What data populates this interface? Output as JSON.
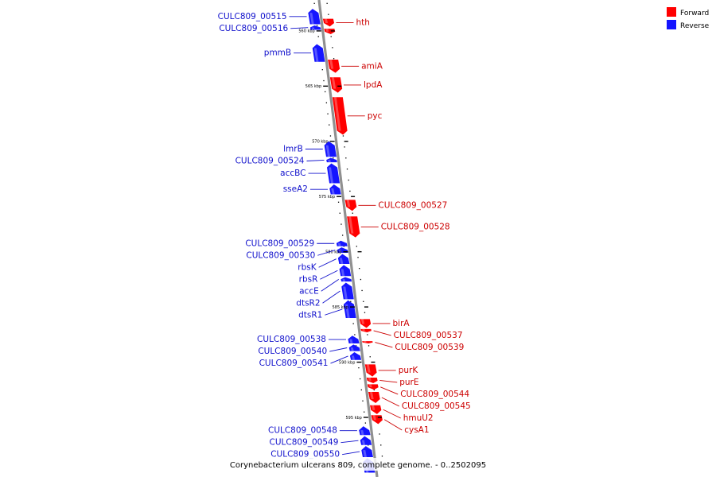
{
  "colors": {
    "forward": "#ff0000",
    "reverse": "#1515ff",
    "backbone": "#909090",
    "forward_label": "#cc0000",
    "reverse_label": "#1010cc"
  },
  "legend": {
    "forward": "Forward",
    "reverse": "Reverse"
  },
  "caption": "Corynebacterium ulcerans 809, complete genome. - 0..2502095",
  "ticks": [
    {
      "label": "560 kbp",
      "kbp": 560
    },
    {
      "label": "565 kbp",
      "kbp": 565
    },
    {
      "label": "570 kbp",
      "kbp": 570
    },
    {
      "label": "575 kbp",
      "kbp": 575
    },
    {
      "label": "580 kbp",
      "kbp": 580
    },
    {
      "label": "585 kbp",
      "kbp": 585
    },
    {
      "label": "590 kbp",
      "kbp": 590
    },
    {
      "label": "595 kbp",
      "kbp": 595
    }
  ],
  "genes": [
    {
      "name": "CULC809_00515",
      "strand": "reverse",
      "start": 558.0,
      "end": 559.4
    },
    {
      "name": "CULC809_00516",
      "strand": "reverse",
      "start": 559.5,
      "end": 559.9
    },
    {
      "name": "hth",
      "strand": "forward",
      "start": 558.9,
      "end": 559.6
    },
    {
      "name": "",
      "strand": "forward",
      "start": 559.8,
      "end": 560.3
    },
    {
      "name": "pmmB",
      "strand": "reverse",
      "start": 561.2,
      "end": 562.8
    },
    {
      "name": "amiA",
      "strand": "forward",
      "start": 562.6,
      "end": 563.8
    },
    {
      "name": "lpdA",
      "strand": "forward",
      "start": 564.2,
      "end": 565.6
    },
    {
      "name": "pyc",
      "strand": "forward",
      "start": 566.0,
      "end": 569.4
    },
    {
      "name": "lmrB",
      "strand": "reverse",
      "start": 570.0,
      "end": 571.4
    },
    {
      "name": "CULC809_00524",
      "strand": "reverse",
      "start": 571.5,
      "end": 571.9
    },
    {
      "name": "accBC",
      "strand": "reverse",
      "start": 572.0,
      "end": 573.8
    },
    {
      "name": "sseA2",
      "strand": "reverse",
      "start": 573.9,
      "end": 574.8
    },
    {
      "name": "CULC809_00527",
      "strand": "forward",
      "start": 575.3,
      "end": 576.3
    },
    {
      "name": "CULC809_00528",
      "strand": "forward",
      "start": 576.8,
      "end": 578.7
    },
    {
      "name": "CULC809_00529",
      "strand": "reverse",
      "start": 579.0,
      "end": 579.5
    },
    {
      "name": "CULC809_00530",
      "strand": "reverse",
      "start": 579.6,
      "end": 580.1
    },
    {
      "name": "rbsK",
      "strand": "reverse",
      "start": 580.2,
      "end": 581.1
    },
    {
      "name": "rbsR",
      "strand": "reverse",
      "start": 581.2,
      "end": 582.2
    },
    {
      "name": "accE",
      "strand": "reverse",
      "start": 582.3,
      "end": 582.7
    },
    {
      "name": "dtsR2",
      "strand": "reverse",
      "start": 582.8,
      "end": 584.3
    },
    {
      "name": "dtsR1",
      "strand": "reverse",
      "start": 584.4,
      "end": 586.0
    },
    {
      "name": "birA",
      "strand": "forward",
      "start": 586.1,
      "end": 586.9
    },
    {
      "name": "CULC809_00537",
      "strand": "forward",
      "start": 587.0,
      "end": 587.3
    },
    {
      "name": "CULC809_00538",
      "strand": "reverse",
      "start": 587.6,
      "end": 588.3
    },
    {
      "name": "CULC809_00539",
      "strand": "forward",
      "start": 588.1,
      "end": 588.3
    },
    {
      "name": "CULC809_00540",
      "strand": "reverse",
      "start": 588.4,
      "end": 589.0
    },
    {
      "name": "CULC809_00541",
      "strand": "reverse",
      "start": 589.1,
      "end": 589.8
    },
    {
      "name": "purK",
      "strand": "forward",
      "start": 590.2,
      "end": 591.3
    },
    {
      "name": "purE",
      "strand": "forward",
      "start": 591.4,
      "end": 591.9
    },
    {
      "name": "CULC809_00544",
      "strand": "forward",
      "start": 592.0,
      "end": 592.5
    },
    {
      "name": "CULC809_00545",
      "strand": "forward",
      "start": 592.7,
      "end": 593.7
    },
    {
      "name": "hmuU2",
      "strand": "forward",
      "start": 593.9,
      "end": 594.7
    },
    {
      "name": "cysA1",
      "strand": "forward",
      "start": 594.8,
      "end": 595.6
    },
    {
      "name": "CULC809_00548",
      "strand": "reverse",
      "start": 595.8,
      "end": 596.6
    },
    {
      "name": "CULC809_00549",
      "strand": "reverse",
      "start": 596.7,
      "end": 597.5
    },
    {
      "name": "CULC809_00550",
      "strand": "reverse",
      "start": 597.6,
      "end": 598.6
    },
    {
      "name": "",
      "strand": "reverse",
      "start": 598.7,
      "end": 600.0
    }
  ]
}
